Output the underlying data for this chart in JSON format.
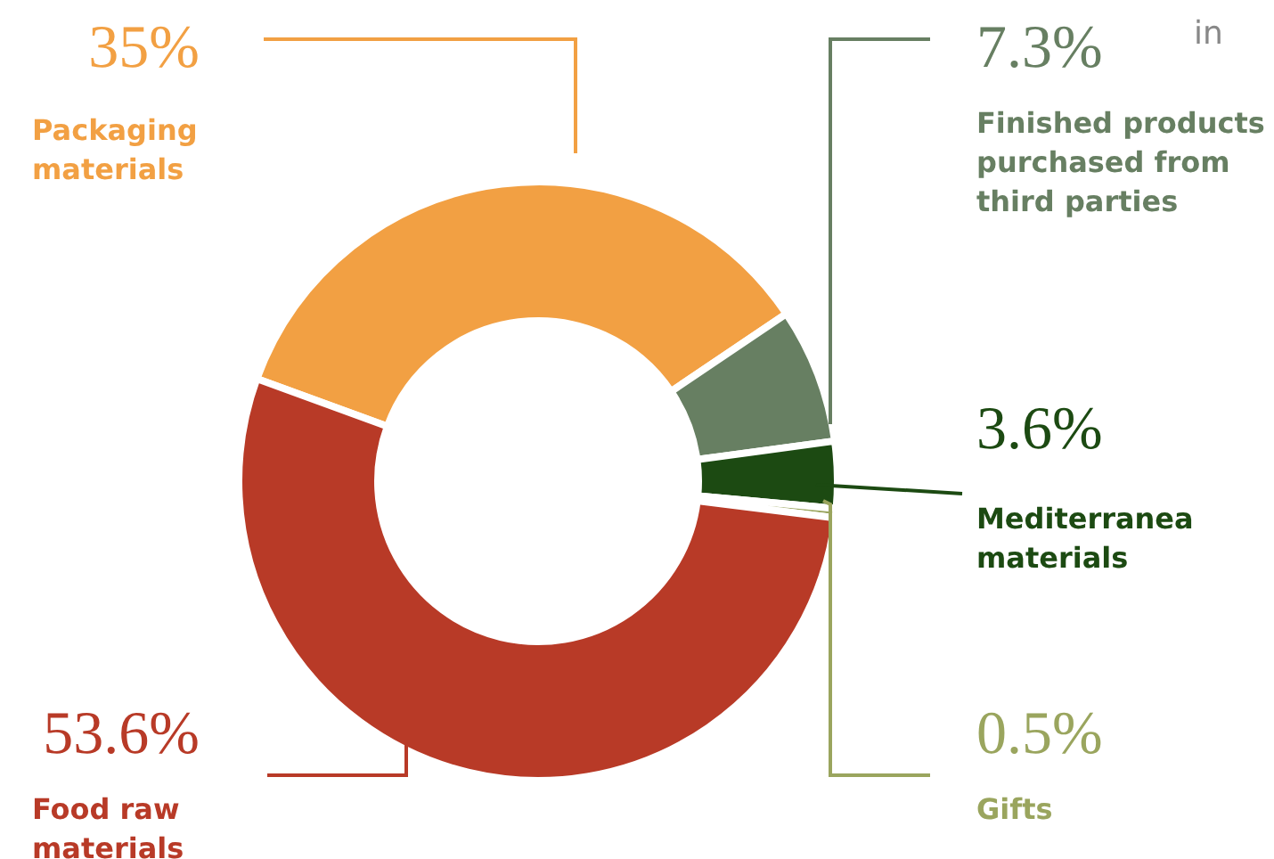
{
  "chart_data": {
    "type": "donut",
    "categories": [
      "Packaging materials",
      "Finished products purchased from third parties",
      "Mediterranea materials",
      "Gifts",
      "Food raw materials"
    ],
    "values": [
      35,
      7.3,
      3.6,
      0.5,
      53.6
    ],
    "value_labels": [
      "35%",
      "7.3%",
      "3.6%",
      "0.5%",
      "53.6%"
    ],
    "colors": [
      "#f2a043",
      "#677f62",
      "#1c4a12",
      "#9aa55e",
      "#b83a27"
    ],
    "annotations": [
      "in"
    ],
    "legend": false
  }
}
